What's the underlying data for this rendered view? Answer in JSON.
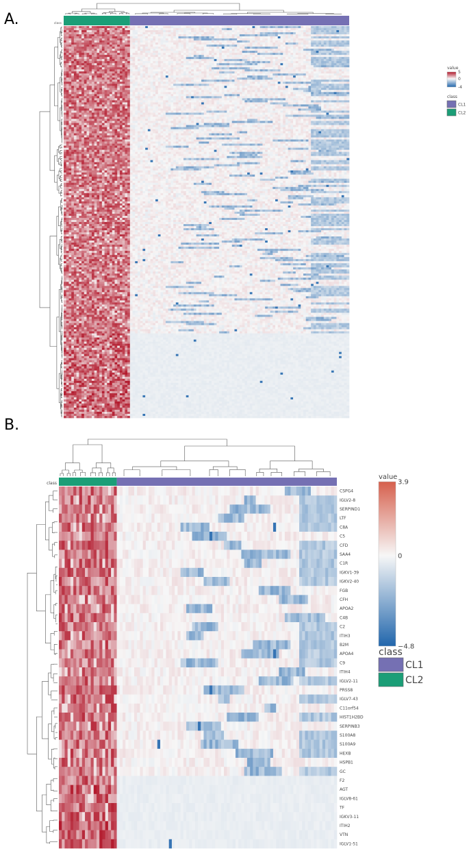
{
  "panels": [
    {
      "label": "A."
    },
    {
      "label": "B."
    }
  ],
  "chart_data": [
    {
      "type": "heatmap",
      "panel": "A.",
      "class_track_label": "class",
      "columns_n": 112,
      "rows_n": 190,
      "classes": [
        {
          "name": "CL2",
          "count": 26,
          "color": "#1b9e77"
        },
        {
          "name": "CL1",
          "count": 86,
          "color": "#7570b3"
        }
      ],
      "row_labels": [],
      "value_range": [
        -4,
        5
      ],
      "legend": {
        "value_title": "value",
        "value_ticks": [
          "5",
          "0",
          "-4"
        ],
        "class_title": "class",
        "class_entries": [
          "CL1",
          "CL2"
        ],
        "placement": "right"
      },
      "colors": {
        "high": "#b2182b",
        "mid": "#f7f7f7",
        "low": "#2166ac"
      }
    },
    {
      "type": "heatmap",
      "panel": "B.",
      "class_track_label": "class",
      "columns_n": 96,
      "classes": [
        {
          "name": "CL2",
          "count": 20,
          "color": "#1b9e77"
        },
        {
          "name": "CL1",
          "count": 76,
          "color": "#7570b3"
        }
      ],
      "row_labels": [
        "CSPG4",
        "IGLV2-8",
        "SERPIND1",
        "LTF",
        "C8A",
        "C5",
        "CFD",
        "SAA4",
        "C1R",
        "IGKV1-39",
        "IGKV2-40",
        "FGB",
        "CFH",
        "APOA2",
        "C4B",
        "C2",
        "ITIH3",
        "B2M",
        "APOA4",
        "C9",
        "ITIH4",
        "IGLV2-11",
        "PRSS8",
        "IGLV7-43",
        "C11orf54",
        "HIST1H2BD",
        "SERPINB3",
        "S100A8",
        "S100A9",
        "HEXB",
        "HSPB1",
        "GC",
        "F2",
        "AGT",
        "IGLV8-61",
        "TF",
        "IGKV3-11",
        "ITIH2",
        "VTN",
        "IGLV1-51"
      ],
      "value_range": [
        -4.8,
        3.9
      ],
      "legend": {
        "value_title": "value",
        "value_ticks": [
          "3.9",
          "0",
          "−4.8"
        ],
        "class_title": "class",
        "class_entries": [
          "CL1",
          "CL2"
        ],
        "placement": "right"
      },
      "colors": {
        "high": "#b2182b",
        "mid": "#f7f7f7",
        "low": "#2166ac"
      }
    }
  ]
}
